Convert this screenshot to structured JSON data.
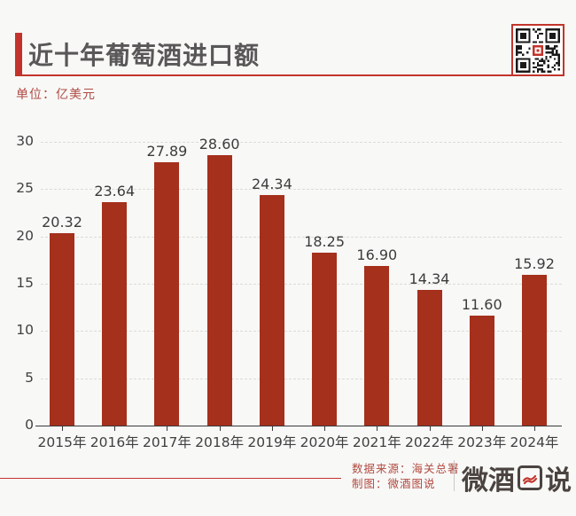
{
  "header": {
    "title": "近十年葡萄酒进口额",
    "unit_label": "单位：亿美元",
    "qr": "wechat-qr-code"
  },
  "chart_data": {
    "type": "bar",
    "title": "近十年葡萄酒进口额",
    "unit": "亿美元",
    "categories": [
      "2015年",
      "2016年",
      "2017年",
      "2018年",
      "2019年",
      "2020年",
      "2021年",
      "2022年",
      "2023年",
      "2024年"
    ],
    "values": [
      20.32,
      23.64,
      27.89,
      28.6,
      24.34,
      18.25,
      16.9,
      14.34,
      11.6,
      15.92
    ],
    "labels": [
      "20.32",
      "23.64",
      "27.89",
      "28.60",
      "24.34",
      "18.25",
      "16.90",
      "14.34",
      "11.60",
      "15.92"
    ],
    "xlabel": "",
    "ylabel": "",
    "ylim": [
      0,
      30
    ],
    "yticks": [
      0,
      5,
      10,
      15,
      20,
      25,
      30
    ],
    "grid": "horizontal-dashed",
    "legend": "none",
    "bar_color": "#A5301C"
  },
  "footer": {
    "source_line": "数据来源：海关总署",
    "credit_line": "制图：微酒图说",
    "logo_text": "微酒图说",
    "logo_prefix": "微酒",
    "logo_suffix": "说"
  },
  "colors": {
    "accent_red": "#C2342B",
    "bar_red": "#A5301C",
    "footer_red": "#B14A40",
    "title_gray": "#595757",
    "axis_text": "#3F3F3F",
    "background": "#F8F8F7"
  }
}
